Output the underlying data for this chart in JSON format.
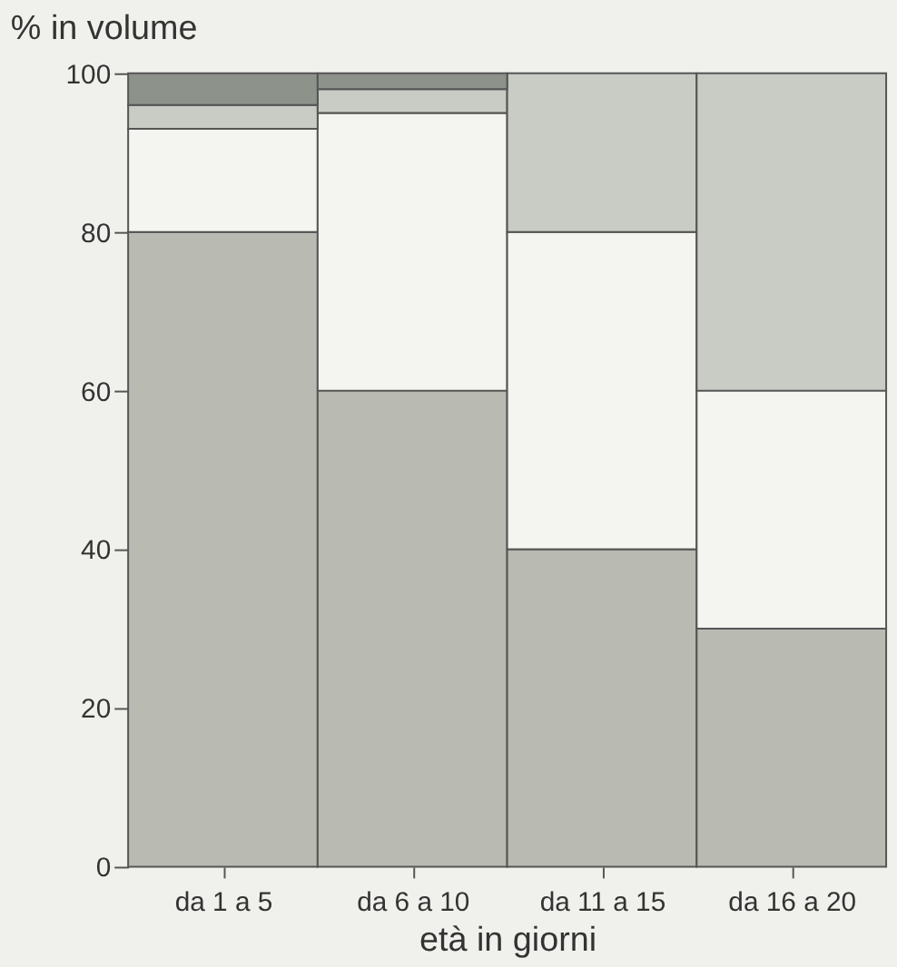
{
  "chart_data": {
    "type": "bar",
    "stacked": true,
    "xlabel": "età in giorni",
    "ylabel": "% in volume",
    "categories": [
      "da 1 a 5",
      "da 6 a 10",
      "da 11 a 15",
      "da 16 a 20"
    ],
    "series": [
      {
        "color": "#b9bbb3",
        "values": [
          80,
          60,
          40,
          30
        ]
      },
      {
        "color": "#f4f4f0",
        "values": [
          13,
          35,
          40,
          30
        ]
      },
      {
        "color": "#c9ccc4",
        "values": [
          3,
          3,
          20,
          40
        ]
      },
      {
        "color": "#8d928b",
        "values": [
          4,
          2,
          null,
          null
        ]
      }
    ],
    "ylim": [
      0,
      100
    ],
    "yticks": [
      0,
      20,
      40,
      60,
      80,
      100
    ],
    "grid": false
  }
}
